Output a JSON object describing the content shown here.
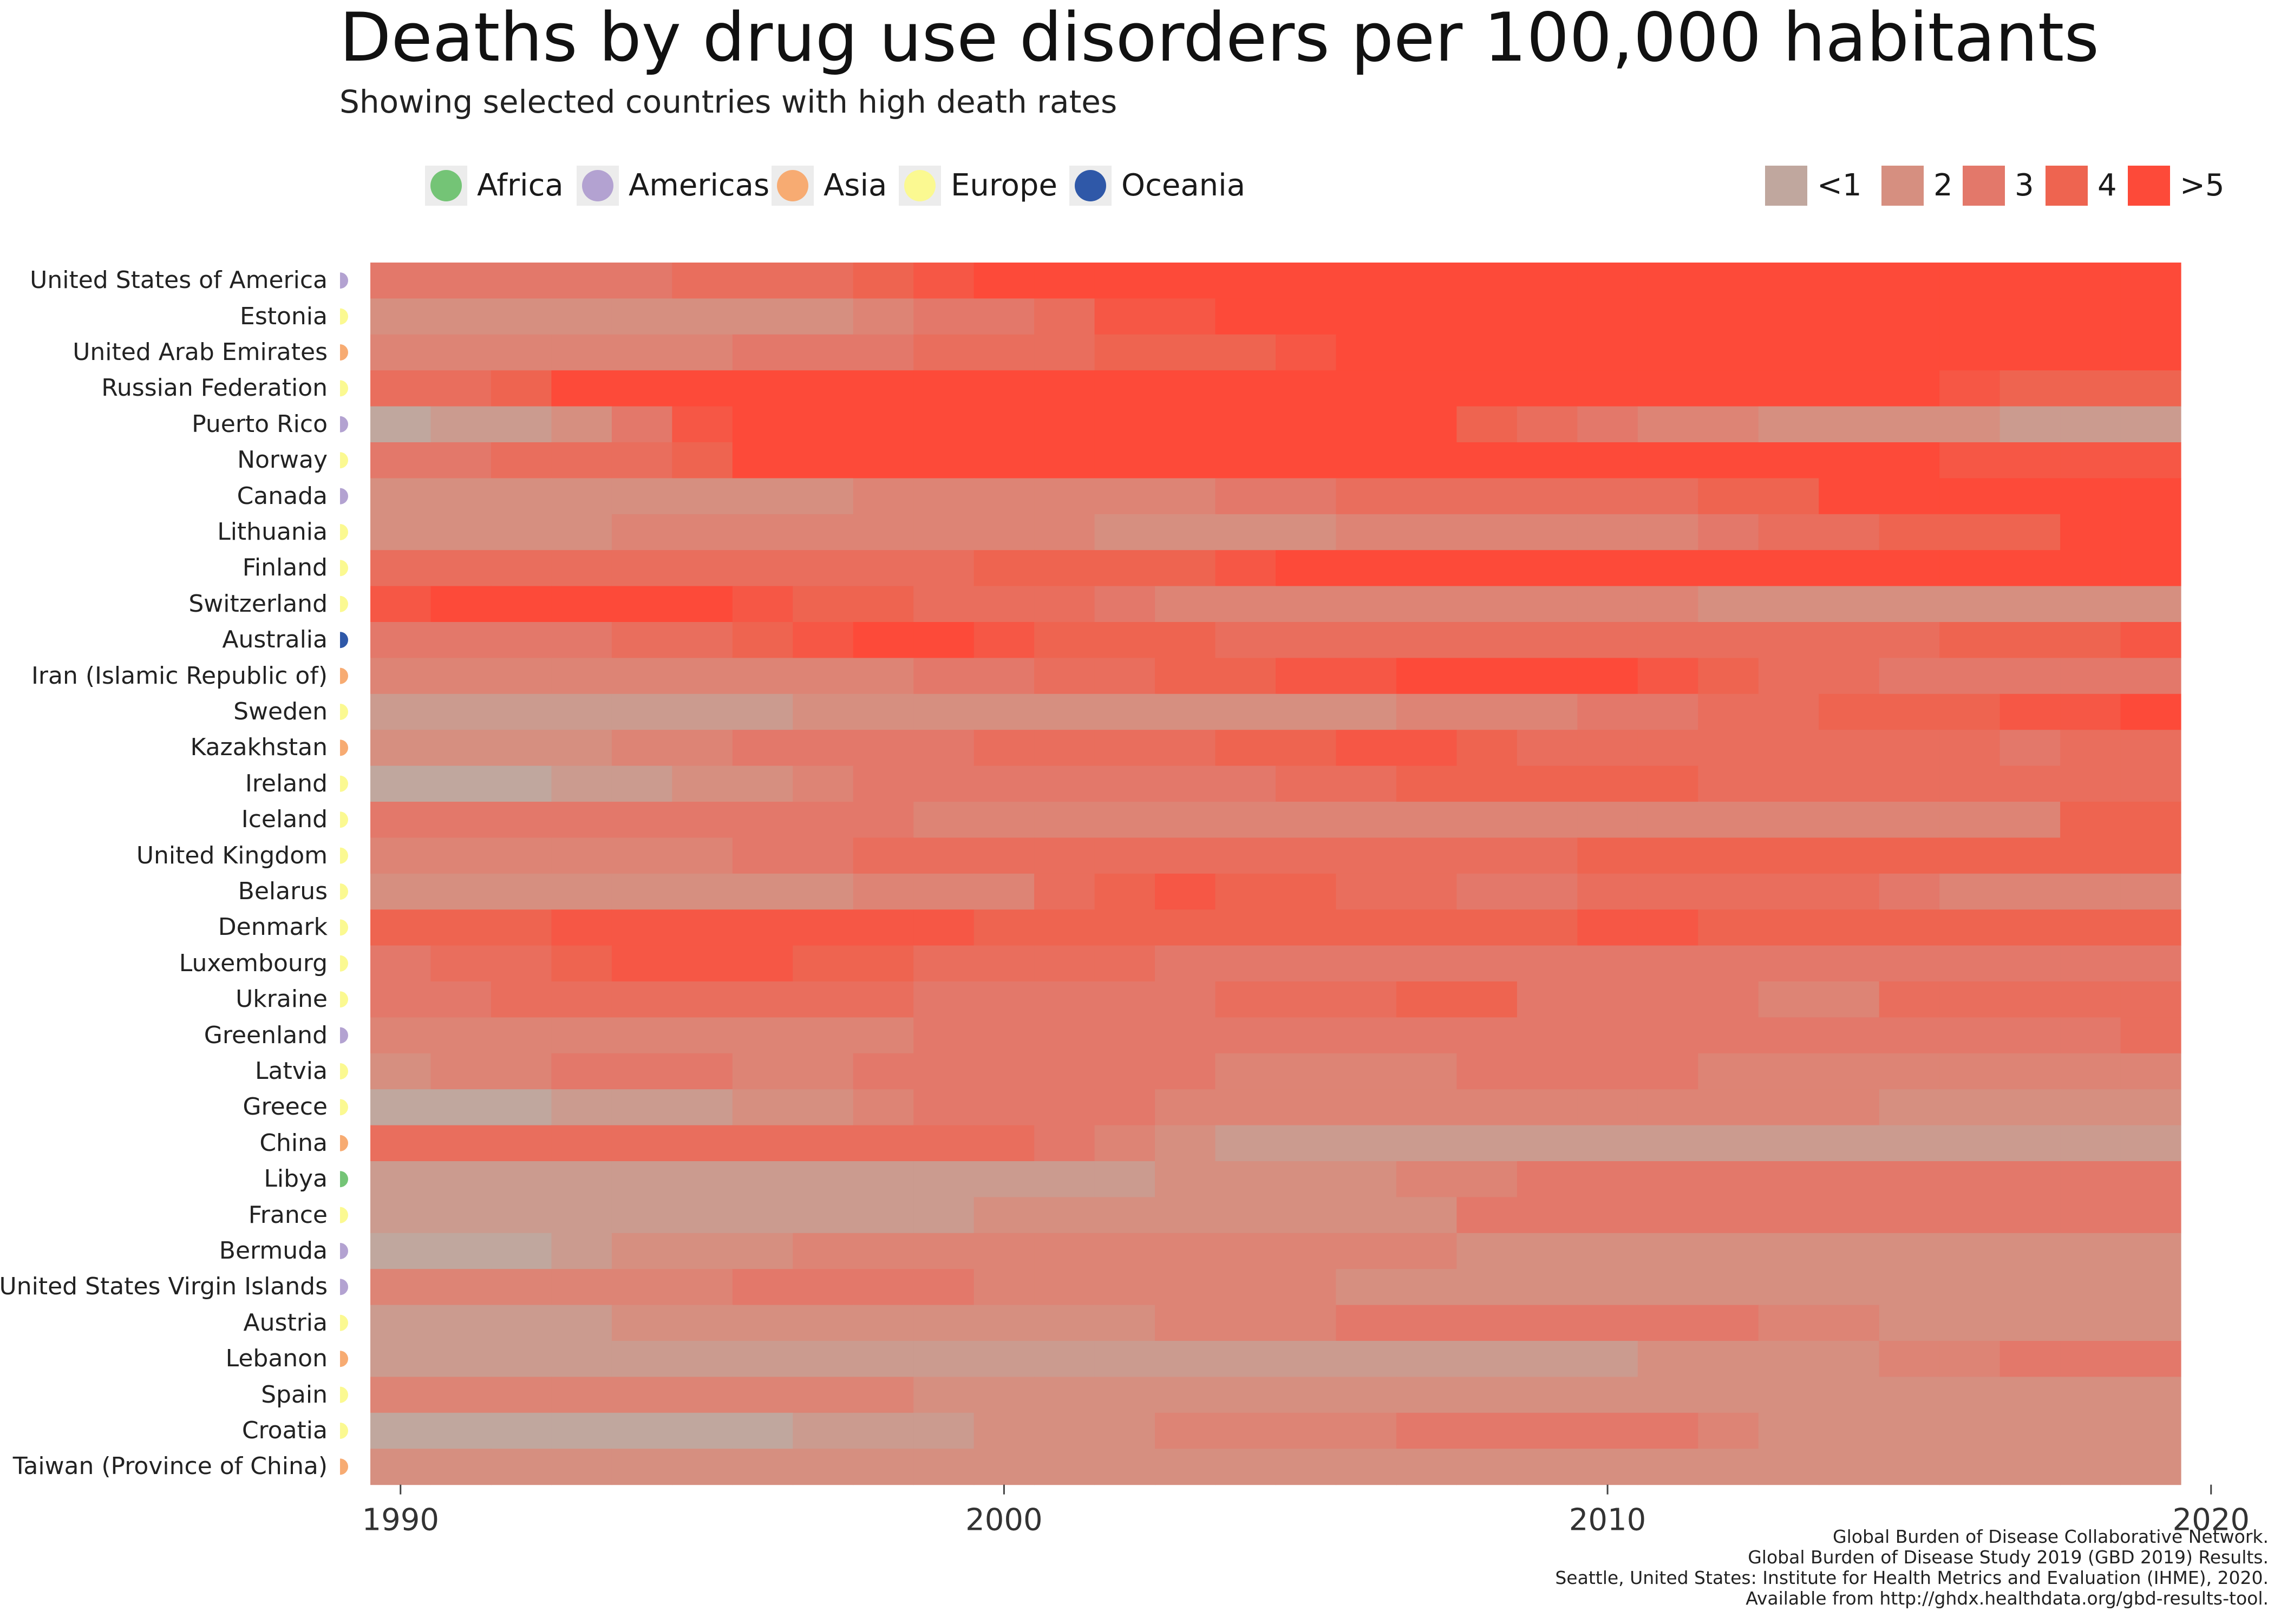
{
  "title": "Deaths by drug use disorders per 100,000 habitants",
  "subtitle": "Showing selected countries with high death rates",
  "region_legend": [
    {
      "name": "Africa",
      "color": "#74c476"
    },
    {
      "name": "Americas",
      "color": "#b3a2d1"
    },
    {
      "name": "Asia",
      "color": "#f7ab72"
    },
    {
      "name": "Europe",
      "color": "#fbf991"
    },
    {
      "name": "Oceania",
      "color": "#2f58a8"
    }
  ],
  "scale_legend": [
    {
      "label": "<1",
      "color": "#c0a79e"
    },
    {
      "label": "2",
      "color": "#d68f80"
    },
    {
      "label": "3",
      "color": "#e3786a"
    },
    {
      "label": "4",
      "color": "#ee6450"
    },
    {
      "label": ">5",
      "color": "#fd4a39"
    }
  ],
  "footer": [
    "Global Burden of Disease Collaborative Network.",
    "Global Burden of Disease Study 2019 (GBD 2019) Results.",
    "Seattle, United States: Institute for Health Metrics and Evaluation (IHME), 2020.",
    "Available from http://ghdx.healthdata.org/gbd-results-tool."
  ],
  "chart_data": {
    "type": "heatmap",
    "title": "Deaths by drug use disorders per 100,000 habitants",
    "subtitle": "Showing selected countries with high death rates",
    "x_ticks": [
      1990,
      2000,
      2010,
      2020
    ],
    "xlim": [
      1989.5,
      2019.5
    ],
    "years": [
      1990,
      1991,
      1992,
      1993,
      1994,
      1995,
      1996,
      1997,
      1998,
      1999,
      2000,
      2001,
      2002,
      2003,
      2004,
      2005,
      2006,
      2007,
      2008,
      2009,
      2010,
      2011,
      2012,
      2013,
      2014,
      2015,
      2016,
      2017,
      2018,
      2019
    ],
    "value_scale": [
      "<1",
      "2",
      "3",
      "4",
      ">5"
    ],
    "rows": [
      {
        "country": "United States of America",
        "region": "Americas",
        "values": [
          3,
          3,
          3,
          3,
          3,
          3.5,
          3.5,
          3.5,
          4,
          4.5,
          5,
          5,
          5,
          5,
          5,
          5,
          5,
          5,
          5,
          5,
          5,
          5,
          5,
          5,
          5,
          5,
          5,
          5,
          5,
          5
        ]
      },
      {
        "country": "Estonia",
        "region": "Europe",
        "values": [
          2,
          2,
          2,
          2,
          2,
          2,
          2,
          2,
          2.5,
          3,
          3,
          3.5,
          4.5,
          4.5,
          5,
          5,
          5,
          5,
          5,
          5,
          5,
          5,
          5,
          5,
          5,
          5,
          5,
          5,
          5,
          5
        ]
      },
      {
        "country": "United Arab Emirates",
        "region": "Asia",
        "values": [
          2.5,
          2.5,
          2.5,
          2.5,
          2.5,
          2.5,
          3,
          3,
          3,
          3.5,
          3.5,
          3.5,
          4,
          4,
          4,
          4.5,
          5,
          5,
          5,
          5,
          5,
          5,
          5,
          5,
          5,
          5,
          5,
          5,
          5,
          5
        ]
      },
      {
        "country": "Russian Federation",
        "region": "Europe",
        "values": [
          3.5,
          3.5,
          4,
          5,
          5,
          5,
          5,
          5,
          5,
          5,
          5,
          5,
          5,
          5,
          5,
          5,
          5,
          5,
          5,
          5,
          5,
          5,
          5,
          5,
          5,
          5,
          4.5,
          4,
          4,
          4
        ]
      },
      {
        "country": "Puerto Rico",
        "region": "Americas",
        "values": [
          1,
          1.5,
          1.5,
          2,
          3,
          4.5,
          5,
          5,
          5,
          5,
          5,
          5,
          5,
          5,
          5,
          5,
          5,
          5,
          4,
          3.5,
          3,
          2.5,
          2.5,
          2,
          2,
          2,
          2,
          1.5,
          1.5,
          1.5
        ]
      },
      {
        "country": "Norway",
        "region": "Europe",
        "values": [
          3,
          3,
          3.5,
          3.5,
          3.5,
          4,
          5,
          5,
          5,
          5,
          5,
          5,
          5,
          5,
          5,
          5,
          5,
          5,
          5,
          5,
          5,
          5,
          5,
          5,
          5,
          5,
          4.5,
          4.5,
          4.5,
          4.5
        ]
      },
      {
        "country": "Canada",
        "region": "Americas",
        "values": [
          2,
          2,
          2,
          2,
          2,
          2,
          2,
          2,
          2.5,
          2.5,
          2.5,
          2.5,
          2.5,
          2.5,
          3,
          3,
          3.5,
          3.5,
          3.5,
          3.5,
          3.5,
          3.5,
          4,
          4,
          5,
          5,
          5,
          5,
          5,
          5
        ]
      },
      {
        "country": "Lithuania",
        "region": "Europe",
        "values": [
          2,
          2,
          2,
          2,
          2.5,
          2.5,
          2.5,
          2.5,
          2.5,
          2.5,
          2.5,
          2.5,
          2,
          2,
          2,
          2,
          2.5,
          2.5,
          2.5,
          2.5,
          2.5,
          2.5,
          3,
          3.5,
          3.5,
          4,
          4,
          4,
          5,
          5
        ]
      },
      {
        "country": "Finland",
        "region": "Europe",
        "values": [
          3.5,
          3.5,
          3.5,
          3.5,
          3.5,
          3.5,
          3.5,
          3.5,
          3.5,
          3.5,
          4,
          4,
          4,
          4,
          4.5,
          5,
          5,
          5,
          5,
          5,
          5,
          5,
          5,
          5,
          5,
          5,
          5,
          5,
          5,
          5
        ]
      },
      {
        "country": "Switzerland",
        "region": "Europe",
        "values": [
          4.5,
          5,
          5,
          5,
          5,
          5,
          4.5,
          4,
          4,
          3.5,
          3.5,
          3.5,
          3,
          2.5,
          2.5,
          2.5,
          2.5,
          2.5,
          2.5,
          2.5,
          2.5,
          2.5,
          2,
          2,
          2,
          2,
          2,
          2,
          2,
          2
        ]
      },
      {
        "country": "Australia",
        "region": "Oceania",
        "values": [
          3,
          3,
          3,
          3,
          3.5,
          3.5,
          4,
          4.5,
          5,
          5,
          4.5,
          4,
          4,
          4,
          3.5,
          3.5,
          3.5,
          3.5,
          3.5,
          3.5,
          3.5,
          3.5,
          3.5,
          3.5,
          3.5,
          3.5,
          4,
          4,
          4,
          4.5
        ]
      },
      {
        "country": "Iran (Islamic Republic of)",
        "region": "Asia",
        "values": [
          2.5,
          2.5,
          2.5,
          2.5,
          2.5,
          2.5,
          2.5,
          2.5,
          2.5,
          3,
          3,
          3.5,
          3.5,
          4,
          4,
          4.5,
          4.5,
          5,
          5,
          5,
          5,
          4.5,
          4,
          3.5,
          3.5,
          3,
          3,
          3,
          3,
          3
        ]
      },
      {
        "country": "Sweden",
        "region": "Europe",
        "values": [
          1.5,
          1.5,
          1.5,
          1.5,
          1.5,
          1.5,
          1.5,
          2,
          2,
          2,
          2,
          2,
          2,
          2,
          2,
          2,
          2,
          2.5,
          2.5,
          2.5,
          3,
          3,
          3.5,
          3.5,
          4,
          4,
          4,
          4.5,
          4.5,
          5
        ]
      },
      {
        "country": "Kazakhstan",
        "region": "Asia",
        "values": [
          2,
          2,
          2,
          2,
          2.5,
          2.5,
          3,
          3,
          3,
          3,
          3.5,
          3.5,
          3.5,
          3.5,
          4,
          4,
          4.5,
          4.5,
          4,
          3.5,
          3.5,
          3.5,
          3.5,
          3.5,
          3.5,
          3.5,
          3.5,
          3,
          3.5,
          3.5
        ]
      },
      {
        "country": "Ireland",
        "region": "Europe",
        "values": [
          1,
          1,
          1,
          1.5,
          1.5,
          2,
          2,
          2.5,
          3,
          3,
          3,
          3,
          3,
          3,
          3,
          3.5,
          3.5,
          4,
          4,
          4,
          4,
          4,
          3.5,
          3.5,
          3.5,
          3.5,
          3.5,
          3.5,
          3.5,
          3.5
        ]
      },
      {
        "country": "Iceland",
        "region": "Europe",
        "values": [
          3,
          3,
          3,
          3,
          3,
          3,
          3,
          3,
          3,
          2.5,
          2.5,
          2.5,
          2.5,
          2.5,
          2.5,
          2.5,
          2.5,
          2.5,
          2.5,
          2.5,
          2.5,
          2.5,
          2.5,
          2.5,
          2.5,
          2.5,
          2.5,
          2.5,
          4,
          4
        ]
      },
      {
        "country": "United Kingdom",
        "region": "Europe",
        "values": [
          2.5,
          2.5,
          2.5,
          2.5,
          2.5,
          2.5,
          3,
          3,
          3.5,
          3.5,
          3.5,
          3.5,
          3.5,
          3.5,
          3.5,
          3.5,
          3.5,
          3.5,
          3.5,
          3.5,
          4,
          4,
          4,
          4,
          4,
          4,
          4,
          4,
          4,
          4
        ]
      },
      {
        "country": "Belarus",
        "region": "Europe",
        "values": [
          2,
          2,
          2,
          2,
          2,
          2,
          2,
          2,
          2.5,
          2.5,
          2.5,
          3.5,
          4,
          4.5,
          4,
          4,
          3.5,
          3.5,
          3,
          3,
          3.5,
          3.5,
          3.5,
          3.5,
          3.5,
          3,
          2.5,
          2.5,
          2.5,
          2.5
        ]
      },
      {
        "country": "Denmark",
        "region": "Europe",
        "values": [
          4,
          4,
          4,
          4.5,
          4.5,
          4.5,
          4.5,
          4.5,
          4.5,
          4.5,
          4,
          4,
          4,
          4,
          4,
          4,
          4,
          4,
          4,
          4,
          4.5,
          4.5,
          4,
          4,
          4,
          4,
          4,
          4,
          4,
          4
        ]
      },
      {
        "country": "Luxembourg",
        "region": "Europe",
        "values": [
          3,
          3.5,
          3.5,
          4,
          4.5,
          4.5,
          4.5,
          4,
          4,
          3.5,
          3.5,
          3.5,
          3.5,
          3,
          3,
          3,
          3,
          3,
          3,
          3,
          3,
          3,
          3,
          3,
          3,
          3,
          3,
          3,
          3,
          3
        ]
      },
      {
        "country": "Ukraine",
        "region": "Europe",
        "values": [
          3,
          3,
          3.5,
          3.5,
          3.5,
          3.5,
          3.5,
          3.5,
          3.5,
          3,
          3,
          3,
          3,
          3,
          3.5,
          3.5,
          3.5,
          4,
          4,
          3,
          3,
          3,
          3,
          2.5,
          2.5,
          3.5,
          3.5,
          3.5,
          3.5,
          3.5
        ]
      },
      {
        "country": "Greenland",
        "region": "Americas",
        "values": [
          2.5,
          2.5,
          2.5,
          2.5,
          2.5,
          2.5,
          2.5,
          2.5,
          2.5,
          3,
          3,
          3,
          3,
          3,
          3,
          3,
          3,
          3,
          3,
          3,
          3,
          3,
          3,
          3,
          3,
          3,
          3,
          3,
          3,
          3.5
        ]
      },
      {
        "country": "Latvia",
        "region": "Europe",
        "values": [
          2,
          2.5,
          2.5,
          3,
          3,
          3,
          2.5,
          2.5,
          3,
          3,
          3,
          3,
          3,
          3,
          2.5,
          2.5,
          2.5,
          2.5,
          3,
          3,
          3,
          3,
          2.5,
          2.5,
          2.5,
          2.5,
          2.5,
          2.5,
          2.5,
          2.5
        ]
      },
      {
        "country": "Greece",
        "region": "Europe",
        "values": [
          1,
          1,
          1,
          1.5,
          1.5,
          1.5,
          2,
          2,
          2.5,
          3,
          3,
          3,
          3,
          2.5,
          2.5,
          2.5,
          2.5,
          2.5,
          2.5,
          2.5,
          2.5,
          2.5,
          2.5,
          2.5,
          2.5,
          2,
          2,
          2,
          2,
          2
        ]
      },
      {
        "country": "China",
        "region": "Asia",
        "values": [
          3.5,
          3.5,
          3.5,
          3.5,
          3.5,
          3.5,
          3.5,
          3.5,
          3.5,
          3.5,
          3.5,
          3,
          2.5,
          2,
          1.5,
          1.5,
          1.5,
          1.5,
          1.5,
          1.5,
          1.5,
          1.5,
          1.5,
          1.5,
          1.5,
          1.5,
          1.5,
          1.5,
          1.5,
          1.5
        ]
      },
      {
        "country": "Libya",
        "region": "Africa",
        "values": [
          1.5,
          1.5,
          1.5,
          1.5,
          1.5,
          1.5,
          1.5,
          1.5,
          1.5,
          1.5,
          1.5,
          1.5,
          1.5,
          2,
          2,
          2,
          2,
          2.5,
          2.5,
          3,
          3,
          3,
          3,
          3,
          3,
          3,
          3,
          3,
          3,
          3
        ]
      },
      {
        "country": "France",
        "region": "Europe",
        "values": [
          1.5,
          1.5,
          1.5,
          1.5,
          1.5,
          1.5,
          1.5,
          1.5,
          1.5,
          1.5,
          2,
          2,
          2,
          2,
          2,
          2,
          2,
          2,
          3,
          3,
          3,
          3,
          3,
          3,
          3,
          3,
          3,
          3,
          3,
          3
        ]
      },
      {
        "country": "Bermuda",
        "region": "Americas",
        "values": [
          1,
          1,
          1,
          1.5,
          2,
          2,
          2,
          2.5,
          2.5,
          2.5,
          2.5,
          2.5,
          2.5,
          2.5,
          2.5,
          2.5,
          2.5,
          2.5,
          2,
          2,
          2,
          2,
          2,
          2,
          2,
          2,
          2,
          2,
          2,
          2
        ]
      },
      {
        "country": "United States Virgin Islands",
        "region": "Americas",
        "values": [
          2.5,
          2.5,
          2.5,
          2.5,
          2.5,
          2.5,
          3,
          3,
          3,
          3,
          2.5,
          2.5,
          2.5,
          2.5,
          2.5,
          2.5,
          2,
          2,
          2,
          2,
          2,
          2,
          2,
          2,
          2,
          2,
          2,
          2,
          2,
          2
        ]
      },
      {
        "country": "Austria",
        "region": "Europe",
        "values": [
          1.5,
          1.5,
          1.5,
          1.5,
          2,
          2,
          2,
          2,
          2,
          2,
          2,
          2,
          2,
          2.5,
          2.5,
          2.5,
          3,
          3,
          3,
          3,
          3,
          3,
          3,
          2.5,
          2.5,
          2,
          2,
          2,
          2,
          2
        ]
      },
      {
        "country": "Lebanon",
        "region": "Asia",
        "values": [
          1.5,
          1.5,
          1.5,
          1.5,
          1.5,
          1.5,
          1.5,
          1.5,
          1.5,
          1.5,
          1.5,
          1.5,
          1.5,
          1.5,
          1.5,
          1.5,
          1.5,
          1.5,
          1.5,
          1.5,
          1.5,
          2,
          2,
          2,
          2,
          2.5,
          2.5,
          3,
          3,
          3
        ]
      },
      {
        "country": "Spain",
        "region": "Europe",
        "values": [
          2.5,
          2.5,
          2.5,
          2.5,
          2.5,
          2.5,
          2.5,
          2.5,
          2.5,
          2,
          2,
          2,
          2,
          2,
          2,
          2,
          2,
          2,
          2,
          2,
          2,
          2,
          2,
          2,
          2,
          2,
          2,
          2,
          2,
          2
        ]
      },
      {
        "country": "Croatia",
        "region": "Europe",
        "values": [
          1,
          1,
          1,
          1,
          1,
          1,
          1,
          1.5,
          1.5,
          1.5,
          2,
          2,
          2,
          2.5,
          2.5,
          2.5,
          2.5,
          3,
          3,
          3,
          3,
          3,
          2.5,
          2,
          2,
          2,
          2,
          2,
          2,
          2
        ]
      },
      {
        "country": "Taiwan (Province of China)",
        "region": "Asia",
        "values": [
          2,
          2,
          2,
          2,
          2,
          2,
          2,
          2,
          2,
          2,
          2,
          2,
          2,
          2,
          2,
          2,
          2,
          2,
          2,
          2,
          2,
          2,
          2,
          2,
          2,
          2,
          2,
          2,
          2,
          2
        ]
      }
    ]
  }
}
